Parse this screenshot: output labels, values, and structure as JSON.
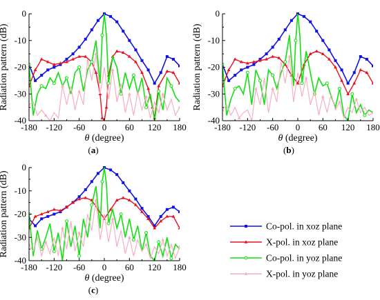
{
  "colors": {
    "copol_xoz": "#1010e8",
    "xpol_xoz": "#e8101e",
    "copol_yoz": "#10e010",
    "xpol_yoz": "#f4b0c0"
  },
  "legend": [
    {
      "label": "Co-pol. in xoz plane",
      "color": "#1010e8",
      "marker": "square"
    },
    {
      "label": "X-pol. in xoz plane",
      "color": "#e8101e",
      "marker": "triangle"
    },
    {
      "label": "Co-pol. in yoz plane",
      "color": "#10e010",
      "marker": "circle"
    },
    {
      "label": "X-pol. in yoz plane",
      "color": "#f4b0c0",
      "marker": "triangle"
    }
  ],
  "chart_data": [
    {
      "type": "line",
      "panel_label": "(a)",
      "xlabel": "θ (degree)",
      "ylabel": "Radiation pattern (dB)",
      "xlim": [
        -180,
        180
      ],
      "ylim": [
        -40,
        0
      ],
      "xticks": [
        "-180",
        "-120",
        "-60",
        "0",
        "60",
        "120",
        "180"
      ],
      "yticks": [
        "0",
        "-10",
        "-20",
        "-30",
        "-40"
      ],
      "series": [
        {
          "name": "Co-pol. in xoz plane",
          "x": [
            -180,
            -165,
            -150,
            -135,
            -120,
            -105,
            -90,
            -75,
            -60,
            -45,
            -30,
            -15,
            0,
            15,
            30,
            45,
            60,
            75,
            90,
            105,
            120,
            135,
            150,
            165,
            180
          ],
          "y": [
            -19,
            -25,
            -23,
            -21,
            -20,
            -19,
            -17,
            -15,
            -12.5,
            -9.5,
            -6,
            -2.5,
            0,
            -1,
            -3,
            -6.5,
            -10,
            -13.5,
            -17.5,
            -21,
            -26,
            -22,
            -16,
            -17,
            -19.5
          ]
        },
        {
          "name": "X-pol. in xoz plane",
          "x": [
            -180,
            -165,
            -150,
            -135,
            -120,
            -105,
            -90,
            -75,
            -60,
            -45,
            -30,
            -20,
            -10,
            -5,
            0,
            5,
            10,
            20,
            30,
            45,
            60,
            75,
            90,
            105,
            115,
            120,
            130,
            150,
            165,
            180
          ],
          "y": [
            -27,
            -21,
            -17,
            -18,
            -19,
            -18.5,
            -18,
            -17,
            -16,
            -16,
            -18,
            -22,
            -30,
            -39,
            -40,
            -35,
            -23,
            -16,
            -14,
            -14.5,
            -16,
            -18,
            -22,
            -28,
            -35,
            -39,
            -27,
            -21.5,
            -22,
            -26
          ]
        },
        {
          "name": "Co-pol. in yoz plane",
          "x": [
            -180,
            -170,
            -160,
            -150,
            -140,
            -130,
            -120,
            -110,
            -100,
            -90,
            -80,
            -70,
            -60,
            -50,
            -40,
            -30,
            -20,
            -10,
            -5,
            0,
            5,
            10,
            20,
            30,
            40,
            50,
            60,
            70,
            80,
            90,
            100,
            110,
            120,
            130,
            140,
            150,
            160,
            170,
            180
          ],
          "y": [
            -19,
            -38,
            -30,
            -27,
            -28,
            -24,
            -26,
            -22,
            -27,
            -24,
            -30,
            -22,
            -20,
            -29,
            -21,
            -18,
            -10,
            -26,
            -8,
            0,
            -8,
            -26,
            -16,
            -20,
            -30,
            -22,
            -28,
            -23,
            -30,
            -24,
            -35,
            -30,
            -40,
            -29,
            -36,
            -24,
            -27,
            -31,
            -33
          ]
        },
        {
          "name": "X-pol. in yoz plane",
          "x": [
            -180,
            -170,
            -160,
            -150,
            -140,
            -130,
            -120,
            -110,
            -100,
            -90,
            -80,
            -70,
            -60,
            -50,
            -40,
            -30,
            -20,
            -10,
            0,
            10,
            20,
            30,
            40,
            50,
            60,
            70,
            80,
            90,
            100,
            110,
            120,
            130,
            140,
            150,
            160,
            170,
            180
          ],
          "y": [
            -34,
            -33,
            -38,
            -36,
            -38,
            -40,
            -37,
            -39,
            -27,
            -34,
            -27,
            -36,
            -29,
            -34,
            -17,
            -25,
            -15,
            -30,
            -20,
            -32,
            -21,
            -33,
            -26,
            -37,
            -30,
            -38,
            -29,
            -36,
            -31,
            -39,
            -33,
            -37,
            -30,
            -36,
            -32,
            -38,
            -35
          ]
        }
      ]
    },
    {
      "type": "line",
      "panel_label": "(b)",
      "xlabel": "θ (degree)",
      "ylabel": "Radiation pattern (dB)",
      "xlim": [
        -180,
        180
      ],
      "ylim": [
        -40,
        0
      ],
      "xticks": [
        "-180",
        "-120",
        "-60",
        "0",
        "60",
        "120",
        "180"
      ],
      "yticks": [
        "0",
        "-10",
        "-20",
        "-30",
        "-40"
      ],
      "series": [
        {
          "name": "Co-pol. in xoz plane",
          "x": [
            -180,
            -165,
            -150,
            -135,
            -120,
            -105,
            -90,
            -75,
            -60,
            -45,
            -30,
            -15,
            0,
            15,
            30,
            45,
            60,
            75,
            90,
            105,
            120,
            135,
            150,
            165,
            180
          ],
          "y": [
            -19,
            -25,
            -23,
            -21,
            -20,
            -19,
            -17,
            -15,
            -12.5,
            -9.5,
            -6,
            -2.5,
            0,
            -1,
            -3,
            -6.5,
            -10,
            -13.5,
            -17.5,
            -21,
            -26,
            -22,
            -16,
            -17,
            -19.5
          ]
        },
        {
          "name": "X-pol. in xoz plane",
          "x": [
            -180,
            -165,
            -150,
            -135,
            -120,
            -105,
            -90,
            -75,
            -60,
            -45,
            -30,
            -15,
            0,
            15,
            30,
            45,
            60,
            75,
            90,
            105,
            120,
            135,
            150,
            165,
            180
          ],
          "y": [
            -27,
            -21,
            -17,
            -18,
            -18.5,
            -18,
            -17.5,
            -17,
            -16,
            -16.5,
            -19,
            -23,
            -26,
            -19,
            -15,
            -14,
            -15,
            -17,
            -20,
            -25,
            -30,
            -26,
            -21,
            -22,
            -26
          ]
        },
        {
          "name": "Co-pol. in yoz plane",
          "x": [
            -180,
            -170,
            -160,
            -150,
            -140,
            -130,
            -120,
            -110,
            -100,
            -90,
            -80,
            -70,
            -60,
            -50,
            -40,
            -30,
            -20,
            -10,
            -5,
            0,
            5,
            10,
            20,
            30,
            40,
            50,
            60,
            70,
            80,
            90,
            100,
            110,
            120,
            130,
            140,
            150,
            160,
            170,
            180
          ],
          "y": [
            -19,
            -38,
            -32,
            -28,
            -27,
            -30,
            -22,
            -34,
            -21,
            -25,
            -34,
            -21,
            -23,
            -28,
            -22,
            -18,
            -8,
            -27,
            -10,
            0,
            -8,
            -26,
            -14,
            -22,
            -30,
            -24,
            -27,
            -26,
            -31,
            -35,
            -28,
            -38,
            -40,
            -30,
            -37,
            -34,
            -38,
            -36,
            -37
          ]
        },
        {
          "name": "X-pol. in yoz plane",
          "x": [
            -180,
            -170,
            -160,
            -150,
            -140,
            -130,
            -120,
            -110,
            -100,
            -90,
            -80,
            -70,
            -60,
            -50,
            -40,
            -30,
            -20,
            -10,
            0,
            10,
            20,
            30,
            40,
            50,
            60,
            70,
            80,
            90,
            100,
            110,
            120,
            130,
            140,
            150,
            160,
            170,
            180
          ],
          "y": [
            -36,
            -34,
            -38,
            -35,
            -39,
            -37,
            -36,
            -40,
            -28,
            -34,
            -24,
            -37,
            -28,
            -33,
            -18,
            -26,
            -16,
            -33,
            -22,
            -31,
            -24,
            -34,
            -29,
            -38,
            -31,
            -37,
            -30,
            -36,
            -33,
            -39,
            -35,
            -37,
            -32,
            -37,
            -35,
            -38,
            -37
          ]
        }
      ]
    },
    {
      "type": "line",
      "panel_label": "(c)",
      "xlabel": "θ (degree)",
      "ylabel": "Radiation pattern (dB)",
      "xlim": [
        -180,
        180
      ],
      "ylim": [
        -40,
        0
      ],
      "xticks": [
        "-180",
        "-120",
        "-60",
        "0",
        "60",
        "120",
        "180"
      ],
      "yticks": [
        "0",
        "-10",
        "-20",
        "-30",
        "-40"
      ],
      "series": [
        {
          "name": "Co-pol. in xoz plane",
          "x": [
            -180,
            -165,
            -150,
            -135,
            -120,
            -105,
            -90,
            -75,
            -60,
            -45,
            -30,
            -15,
            0,
            15,
            30,
            45,
            60,
            75,
            90,
            105,
            120,
            135,
            150,
            165,
            180
          ],
          "y": [
            -22,
            -25,
            -22,
            -21,
            -20,
            -19,
            -17,
            -15,
            -12.5,
            -9.5,
            -6,
            -2.5,
            0,
            -1,
            -3,
            -6.5,
            -10,
            -13.5,
            -17.5,
            -21,
            -25,
            -21,
            -18,
            -17,
            -19
          ]
        },
        {
          "name": "X-pol. in xoz plane",
          "x": [
            -180,
            -165,
            -150,
            -135,
            -120,
            -105,
            -90,
            -75,
            -60,
            -45,
            -30,
            -15,
            0,
            15,
            30,
            45,
            60,
            75,
            90,
            105,
            120,
            135,
            150,
            165,
            180
          ],
          "y": [
            -26,
            -21,
            -20,
            -19,
            -18,
            -18.5,
            -17,
            -15,
            -13.5,
            -13,
            -14,
            -18,
            -22,
            -18,
            -14,
            -13,
            -14,
            -16,
            -19,
            -22,
            -26,
            -23,
            -21,
            -21,
            -26
          ]
        },
        {
          "name": "Co-pol. in yoz plane",
          "x": [
            -180,
            -170,
            -160,
            -150,
            -140,
            -130,
            -120,
            -110,
            -100,
            -90,
            -80,
            -70,
            -60,
            -50,
            -40,
            -30,
            -20,
            -10,
            -5,
            0,
            5,
            10,
            20,
            30,
            40,
            50,
            60,
            70,
            80,
            90,
            100,
            110,
            120,
            130,
            140,
            150,
            160,
            170,
            180
          ],
          "y": [
            -20,
            -38,
            -27,
            -35,
            -30,
            -24,
            -36,
            -28,
            -40,
            -23,
            -34,
            -25,
            -38,
            -22,
            -30,
            -16,
            -8,
            -26,
            -6,
            0,
            -7,
            -24,
            -18,
            -26,
            -20,
            -30,
            -22,
            -31,
            -25,
            -36,
            -28,
            -38,
            -40,
            -32,
            -38,
            -30,
            -39,
            -33,
            -35
          ]
        },
        {
          "name": "X-pol. in yoz plane",
          "x": [
            -180,
            -170,
            -160,
            -150,
            -140,
            -130,
            -120,
            -110,
            -100,
            -90,
            -80,
            -70,
            -60,
            -50,
            -40,
            -30,
            -20,
            -10,
            0,
            10,
            20,
            30,
            40,
            50,
            60,
            70,
            80,
            90,
            100,
            110,
            120,
            130,
            140,
            150,
            160,
            170,
            180
          ],
          "y": [
            -33,
            -36,
            -30,
            -38,
            -32,
            -37,
            -30,
            -38,
            -26,
            -35,
            -23,
            -36,
            -28,
            -34,
            -20,
            -27,
            -14,
            -31,
            -20,
            -32,
            -22,
            -34,
            -27,
            -37,
            -30,
            -38,
            -31,
            -36,
            -33,
            -39,
            -34,
            -37,
            -31,
            -38,
            -33,
            -39,
            -34
          ]
        }
      ]
    }
  ]
}
